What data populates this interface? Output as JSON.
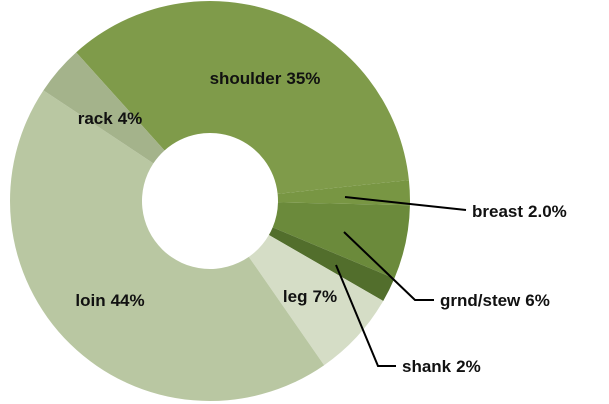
{
  "chart_data": {
    "type": "donut",
    "categories": [
      "shoulder",
      "breast",
      "grnd/stew",
      "shank",
      "leg",
      "loin",
      "rack"
    ],
    "values": [
      35,
      2.0,
      6,
      2,
      7,
      44,
      4
    ],
    "value_labels": [
      "35%",
      "2.0%",
      "6%",
      "2%",
      "7%",
      "44%",
      "4%"
    ],
    "colors": [
      "#7f9b4a",
      "#789643",
      "#6b8a3b",
      "#526e2c",
      "#d5ddc6",
      "#b9c7a2",
      "#a4b38b"
    ]
  }
}
